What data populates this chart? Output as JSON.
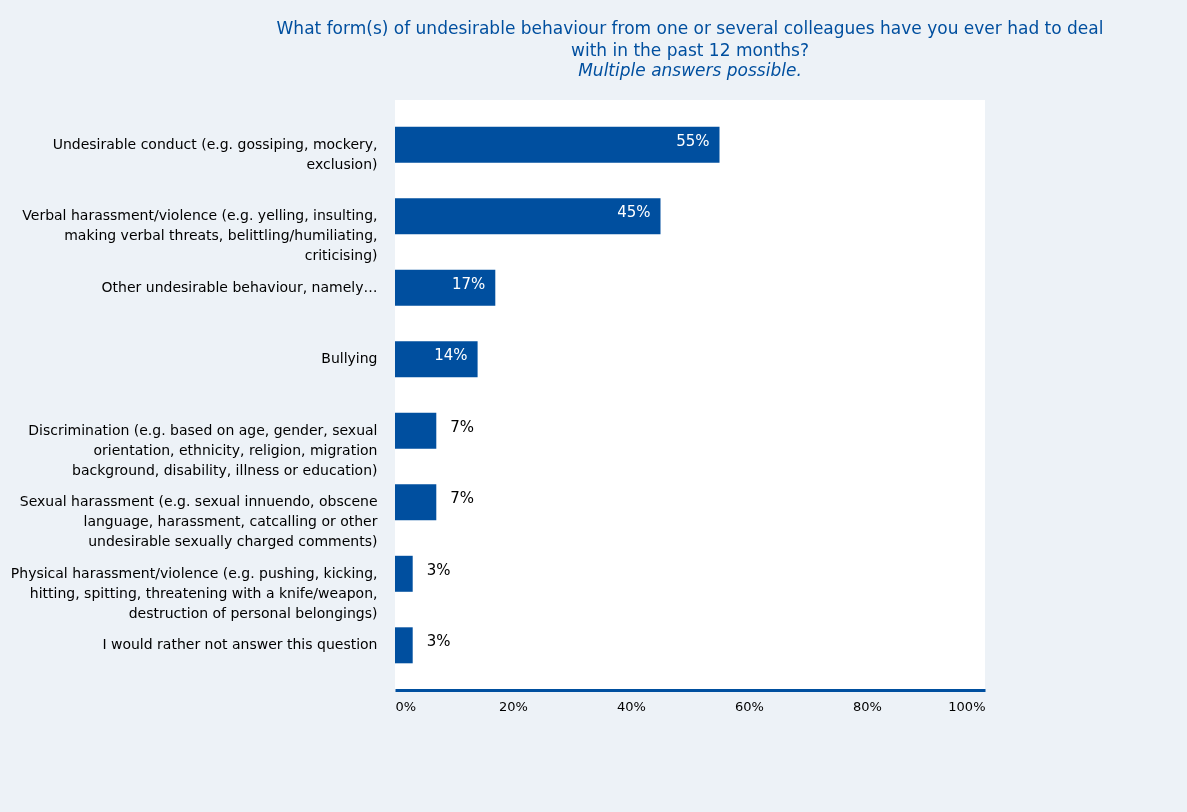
{
  "chart_data": {
    "type": "bar",
    "orientation": "horizontal",
    "title": "What form(s) of undesirable behaviour from one or several colleagues have you ever had to deal with in the past 12 months?",
    "subtitle": "Multiple answers possible.",
    "categories": [
      "Undesirable conduct (e.g. gossiping, mockery, exclusion)",
      "Verbal harassment/violence (e.g. yelling, insulting, making verbal threats, belittling/humiliating, criticising)",
      "Other undesirable behaviour, namely…",
      "Bullying",
      "Discrimination (e.g. based on age, gender, sexual orientation, ethnicity, religion, migration background, disability, illness or education)",
      "Sexual harassment (e.g. sexual innuendo, obscene language, harassment, catcalling or other undesirable sexually charged comments)",
      "Physical harassment/violence (e.g. pushing, kicking, hitting, spitting, threatening with a knife/weapon, destruction of personal belongings)",
      "I would rather not answer this question"
    ],
    "values": [
      55,
      45,
      17,
      14,
      7,
      7,
      3,
      3
    ],
    "value_labels": [
      "55%",
      "45%",
      "17%",
      "14%",
      "7%",
      "7%",
      "3%",
      "3%"
    ],
    "color": "#004f9f",
    "xlim": [
      0,
      100
    ],
    "xticks": [
      {
        "value": 0,
        "label": "0%"
      },
      {
        "value": 20,
        "label": "20%"
      },
      {
        "value": 40,
        "label": "40%"
      },
      {
        "value": 60,
        "label": "60%"
      },
      {
        "value": 80,
        "label": "80%"
      },
      {
        "value": 100,
        "label": "100%"
      }
    ]
  }
}
